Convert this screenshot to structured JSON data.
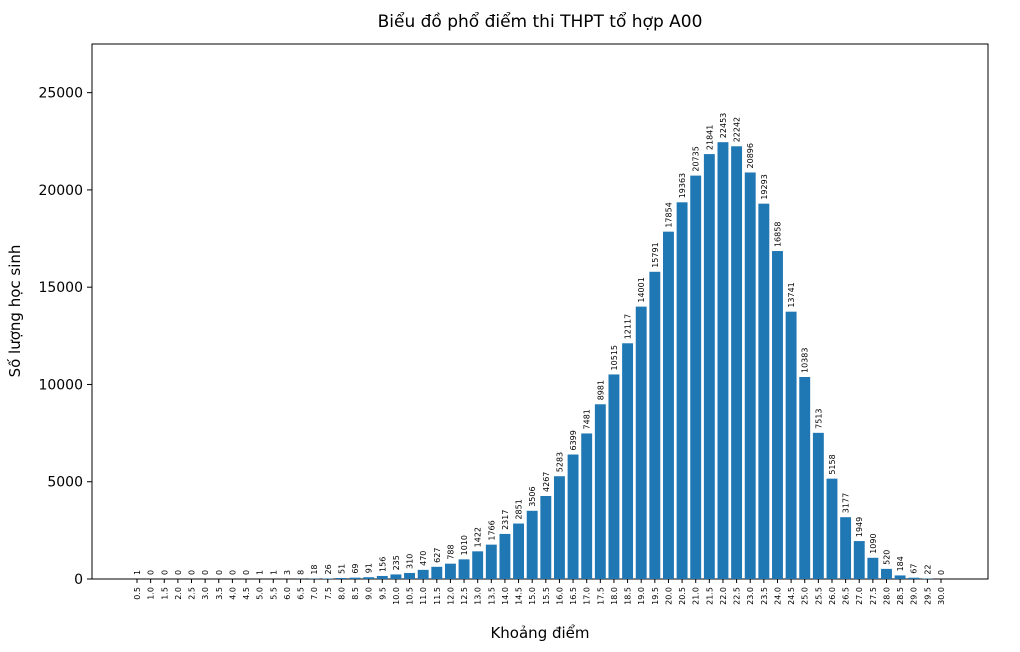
{
  "chart_data": {
    "type": "bar",
    "title": "Biểu đồ phổ điểm thi THPT tổ hợp A00",
    "x_label": "Khoảng điểm",
    "y_label": "Số lượng học sinh",
    "categories": [
      "0.5",
      "1.0",
      "1.5",
      "2.0",
      "2.5",
      "3.0",
      "3.5",
      "4.0",
      "4.5",
      "5.0",
      "5.5",
      "6.0",
      "6.5",
      "7.0",
      "7.5",
      "8.0",
      "8.5",
      "9.0",
      "9.5",
      "10.0",
      "10.5",
      "11.0",
      "11.5",
      "12.0",
      "12.5",
      "13.0",
      "13.5",
      "14.0",
      "14.5",
      "15.0",
      "15.5",
      "16.0",
      "16.5",
      "17.0",
      "17.5",
      "18.0",
      "18.5",
      "19.0",
      "19.5",
      "20.0",
      "20.5",
      "21.0",
      "21.5",
      "22.0",
      "22.5",
      "23.0",
      "23.5",
      "24.0",
      "24.5",
      "25.0",
      "25.5",
      "26.0",
      "26.5",
      "27.0",
      "27.5",
      "28.0",
      "28.5",
      "29.0",
      "29.5",
      "30.0"
    ],
    "values": [
      1,
      0,
      0,
      0,
      0,
      0,
      0,
      0,
      0,
      1,
      1,
      3,
      8,
      18,
      26,
      51,
      69,
      91,
      156,
      235,
      310,
      470,
      627,
      788,
      1010,
      1422,
      1766,
      2317,
      2851,
      3506,
      4267,
      5283,
      6399,
      7481,
      8981,
      10515,
      12117,
      14001,
      15791,
      17854,
      19363,
      20735,
      21841,
      22453,
      22242,
      20896,
      19293,
      16858,
      13741,
      10383,
      7513,
      5158,
      3177,
      1949,
      1090,
      520,
      184,
      67,
      22,
      0
    ],
    "color": "#1f77b4",
    "ylim": [
      0,
      27500
    ],
    "yticks": [
      0,
      5000,
      10000,
      15000,
      20000,
      25000
    ]
  }
}
